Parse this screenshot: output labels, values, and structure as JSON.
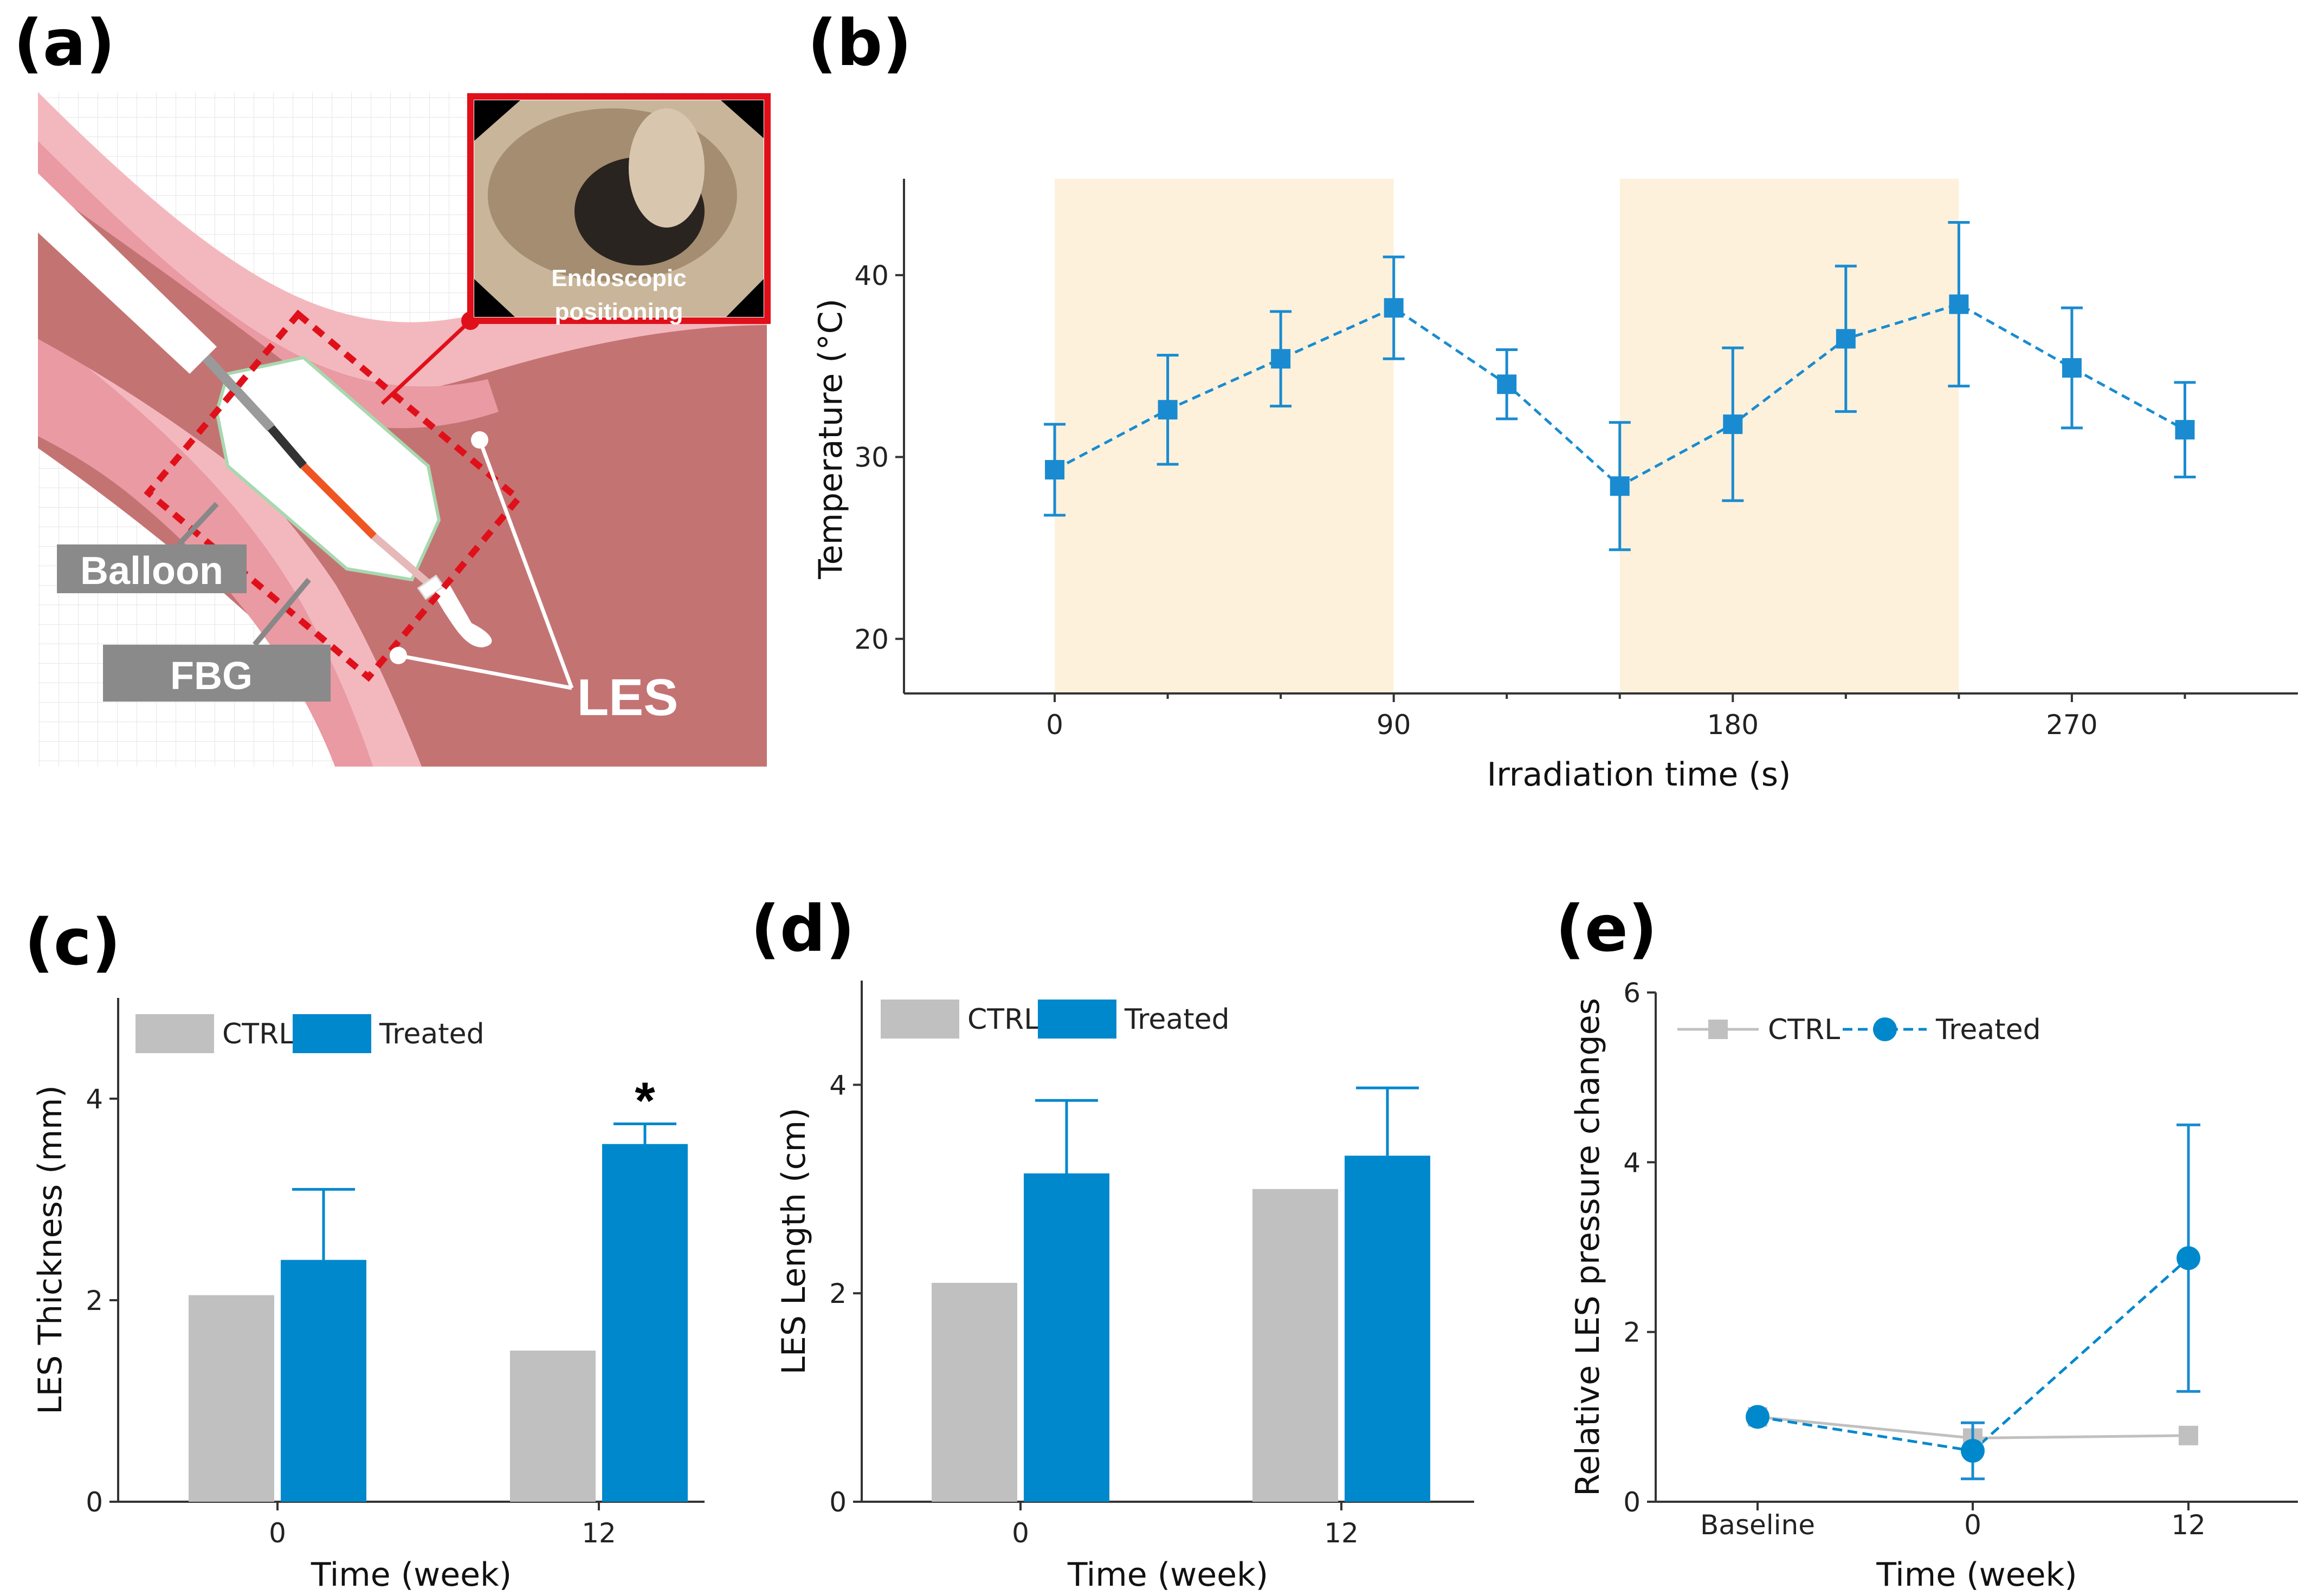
{
  "colors": {
    "ctrl": "#c0c0c0",
    "treated": "#0088cc",
    "series_b": "#1a8bd0",
    "irradiation_shade": "#fdf1dc",
    "tissue_dark": "#c47373",
    "tissue_light": "#f3b8be",
    "highlight_red": "#e0101a"
  },
  "panels": {
    "a": {
      "label": "(a)",
      "inset_text": [
        "Endoscopic",
        "positioning"
      ],
      "labels": {
        "balloon": "Balloon",
        "fbg": "FBG",
        "les": "LES"
      }
    },
    "b": {
      "label": "(b)"
    },
    "c": {
      "label": "(c)"
    },
    "d": {
      "label": "(d)"
    },
    "e": {
      "label": "(e)"
    }
  },
  "chart_data": [
    {
      "id": "b",
      "type": "line",
      "title": "",
      "xlabel": "Irradiation time (s)",
      "ylabel": "Temperature (°C)",
      "xlim": [
        -40,
        330
      ],
      "ylim": [
        17,
        45
      ],
      "xticks": [
        0,
        90,
        180,
        270
      ],
      "yticks": [
        20,
        30,
        40
      ],
      "xminor": [
        30,
        60,
        120,
        150,
        210,
        240,
        300
      ],
      "irradiation_periods": [
        [
          0,
          90
        ],
        [
          150,
          240
        ]
      ],
      "series": [
        {
          "name": "Temperature",
          "marker": "square",
          "linestyle": "dashed",
          "x": [
            0,
            30,
            60,
            90,
            120,
            150,
            180,
            210,
            240,
            270,
            300
          ],
          "y": [
            29.3,
            32.6,
            35.4,
            38.2,
            34.0,
            28.4,
            31.8,
            36.5,
            38.4,
            34.9,
            31.5
          ],
          "err": [
            2.5,
            3.0,
            2.6,
            2.8,
            1.9,
            3.5,
            4.2,
            4.0,
            4.5,
            3.3,
            2.6
          ]
        }
      ]
    },
    {
      "id": "c",
      "type": "bar",
      "xlabel": "Time (week)",
      "ylabel": "LES Thickness (mm)",
      "ylim": [
        0,
        5
      ],
      "yticks": [
        0,
        2,
        4
      ],
      "categories": [
        "0",
        "12"
      ],
      "series": [
        {
          "name": "CTRL",
          "values": [
            2.05,
            1.5
          ],
          "err": [
            0,
            0
          ]
        },
        {
          "name": "Treated",
          "values": [
            2.4,
            3.55
          ],
          "err": [
            0.7,
            0.2
          ]
        }
      ],
      "annotations": [
        {
          "category": "12",
          "series": "Treated",
          "text": "*"
        }
      ]
    },
    {
      "id": "d",
      "type": "bar",
      "xlabel": "Time (week)",
      "ylabel": "LES Length (cm)",
      "ylim": [
        0,
        5
      ],
      "yticks": [
        0,
        2,
        4
      ],
      "categories": [
        "0",
        "12"
      ],
      "series": [
        {
          "name": "CTRL",
          "values": [
            2.1,
            3.0
          ],
          "err": [
            0,
            0
          ]
        },
        {
          "name": "Treated",
          "values": [
            3.15,
            3.32
          ],
          "err": [
            0.7,
            0.65
          ]
        }
      ]
    },
    {
      "id": "e",
      "type": "line",
      "xlabel": "Time (week)",
      "ylabel": "Relative LES pressure changes",
      "ylim": [
        0,
        6
      ],
      "yticks": [
        0,
        2,
        4,
        6
      ],
      "categories": [
        "Baseline",
        "0",
        "12"
      ],
      "series": [
        {
          "name": "CTRL",
          "marker": "square",
          "linestyle": "solid",
          "values": [
            1.0,
            0.75,
            0.78
          ],
          "err": [
            0,
            0,
            0
          ]
        },
        {
          "name": "Treated",
          "marker": "circle",
          "linestyle": "dashed",
          "values": [
            1.0,
            0.6,
            2.87
          ],
          "err": [
            0,
            0.33,
            1.57
          ]
        }
      ]
    }
  ]
}
